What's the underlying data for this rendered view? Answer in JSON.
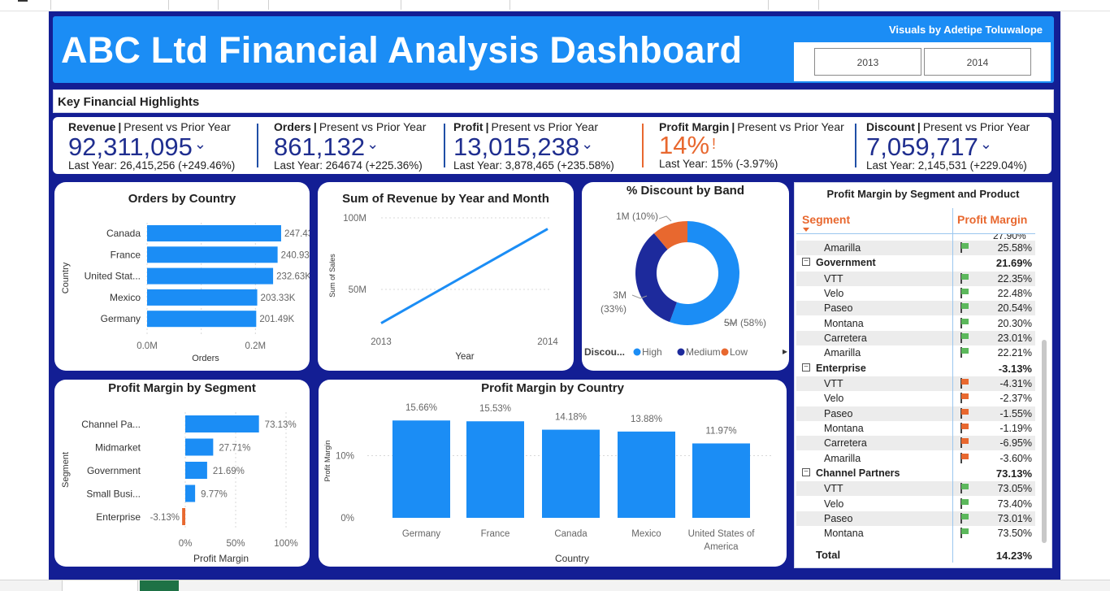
{
  "dashboard": {
    "title": "ABC Ltd Financial Analysis Dashboard",
    "credit": "Visuals by Adetipe Toluwalope",
    "years": [
      "2013",
      "2014"
    ],
    "section_label": "Key Financial Highlights"
  },
  "kpis": [
    {
      "name": "Revenue",
      "subtitle": "Present vs Prior Year",
      "value": "92,311,095",
      "last_year": "Last Year: 26,415,256 (+249.46%)",
      "status": "up"
    },
    {
      "name": "Orders",
      "subtitle": "Present vs Prior Year",
      "value": "861,132",
      "last_year": "Last Year: 264674 (+225.36%)",
      "status": "up"
    },
    {
      "name": "Profit",
      "subtitle": "Present vs Prior Year",
      "value": "13,015,238",
      "last_year": "Last Year: 3,878,465 (+235.58%)",
      "status": "up"
    },
    {
      "name": "Profit Margin",
      "subtitle": "Present vs Prior Year",
      "value": "14%",
      "last_year": "Last Year: 15% (-3.97%)",
      "status": "down"
    },
    {
      "name": "Discount",
      "subtitle": "Present vs Prior Year",
      "value": "7,059,717",
      "last_year": "Last Year: 2,145,531 (+229.04%)",
      "status": "up"
    }
  ],
  "colors": {
    "accent": "#1b8df5",
    "background": "#131e94",
    "navy": "#1f2e8f",
    "orange": "#e8682f",
    "dark_blue": "#1d2a9c"
  },
  "chart_data": [
    {
      "id": "orders_by_country",
      "type": "bar",
      "orientation": "horizontal",
      "title": "Orders by Country",
      "xlabel": "Orders",
      "ylabel": "Country",
      "categories": [
        "Canada",
        "France",
        "United Stat...",
        "Mexico",
        "Germany"
      ],
      "values": [
        247430,
        240930,
        232630,
        203330,
        201490
      ],
      "data_labels": [
        "247.43K",
        "240.93K",
        "232.63K",
        "203.33K",
        "201.49K"
      ],
      "x_ticks": [
        "0.0M",
        "0.2M"
      ],
      "xlim": [
        0,
        300000
      ]
    },
    {
      "id": "revenue_by_year",
      "type": "line",
      "title": "Sum of Revenue by Year and Month",
      "xlabel": "Year",
      "ylabel": "Sum of Sales",
      "x": [
        "2013",
        "2014"
      ],
      "values": [
        26415256,
        92311095
      ],
      "y_ticks": [
        "50M",
        "100M"
      ],
      "ylim": [
        0,
        100000000
      ]
    },
    {
      "id": "discount_by_band",
      "type": "pie",
      "variant": "donut",
      "title": "% Discount by Band",
      "legend_title": "Discou...",
      "categories": [
        "High",
        "Medium",
        "Low"
      ],
      "values": [
        5000000,
        3000000,
        1000000
      ],
      "percent": [
        58,
        33,
        10
      ],
      "data_labels": [
        "5M (58%)",
        "3M (33%)",
        "1M (10%)"
      ],
      "colors": [
        "#1b8df5",
        "#1d2a9c",
        "#e8682f"
      ]
    },
    {
      "id": "profit_margin_by_segment",
      "type": "bar",
      "orientation": "horizontal",
      "title": "Profit Margin by Segment",
      "xlabel": "Profit Margin",
      "ylabel": "Segment",
      "categories": [
        "Channel Pa...",
        "Midmarket",
        "Government",
        "Small Busi...",
        "Enterprise"
      ],
      "values": [
        73.13,
        27.71,
        21.69,
        9.77,
        -3.13
      ],
      "data_labels": [
        "73.13%",
        "27.71%",
        "21.69%",
        "9.77%",
        "-3.13%"
      ],
      "x_ticks": [
        "0%",
        "50%",
        "100%"
      ],
      "xlim": [
        -5,
        100
      ]
    },
    {
      "id": "profit_margin_by_country",
      "type": "bar",
      "title": "Profit Margin by Country",
      "xlabel": "Country",
      "ylabel": "Profit Margin",
      "categories": [
        "Germany",
        "France",
        "Canada",
        "Mexico",
        "United States of America"
      ],
      "values": [
        15.66,
        15.53,
        14.18,
        13.88,
        11.97
      ],
      "data_labels": [
        "15.66%",
        "15.53%",
        "14.18%",
        "13.88%",
        "11.97%"
      ],
      "y_ticks": [
        "0%",
        "10%"
      ],
      "ylim": [
        0,
        17
      ]
    }
  ],
  "table": {
    "title": "Profit Margin by Segment and Product",
    "columns": [
      "Segment",
      "Profit Margin"
    ],
    "partial_top_value": "27.90%",
    "rows": [
      {
        "kind": "item",
        "label": "Amarilla",
        "value": "25.58%",
        "flag": "green"
      },
      {
        "kind": "group",
        "label": "Government",
        "value": "21.69%"
      },
      {
        "kind": "item",
        "label": "VTT",
        "value": "22.35%",
        "flag": "green"
      },
      {
        "kind": "item",
        "label": "Velo",
        "value": "22.48%",
        "flag": "green"
      },
      {
        "kind": "item",
        "label": "Paseo",
        "value": "20.54%",
        "flag": "green"
      },
      {
        "kind": "item",
        "label": "Montana",
        "value": "20.30%",
        "flag": "green"
      },
      {
        "kind": "item",
        "label": "Carretera",
        "value": "23.01%",
        "flag": "green"
      },
      {
        "kind": "item",
        "label": "Amarilla",
        "value": "22.21%",
        "flag": "green"
      },
      {
        "kind": "group",
        "label": "Enterprise",
        "value": "-3.13%"
      },
      {
        "kind": "item",
        "label": "VTT",
        "value": "-4.31%",
        "flag": "red"
      },
      {
        "kind": "item",
        "label": "Velo",
        "value": "-2.37%",
        "flag": "red"
      },
      {
        "kind": "item",
        "label": "Paseo",
        "value": "-1.55%",
        "flag": "red"
      },
      {
        "kind": "item",
        "label": "Montana",
        "value": "-1.19%",
        "flag": "red"
      },
      {
        "kind": "item",
        "label": "Carretera",
        "value": "-6.95%",
        "flag": "red"
      },
      {
        "kind": "item",
        "label": "Amarilla",
        "value": "-3.60%",
        "flag": "red"
      },
      {
        "kind": "group",
        "label": "Channel Partners",
        "value": "73.13%"
      },
      {
        "kind": "item",
        "label": "VTT",
        "value": "73.05%",
        "flag": "green"
      },
      {
        "kind": "item",
        "label": "Velo",
        "value": "73.40%",
        "flag": "green"
      },
      {
        "kind": "item",
        "label": "Paseo",
        "value": "73.01%",
        "flag": "green"
      },
      {
        "kind": "item",
        "label": "Montana",
        "value": "73.50%",
        "flag": "green"
      }
    ],
    "total_label": "Total",
    "total_value": "14.23%"
  }
}
